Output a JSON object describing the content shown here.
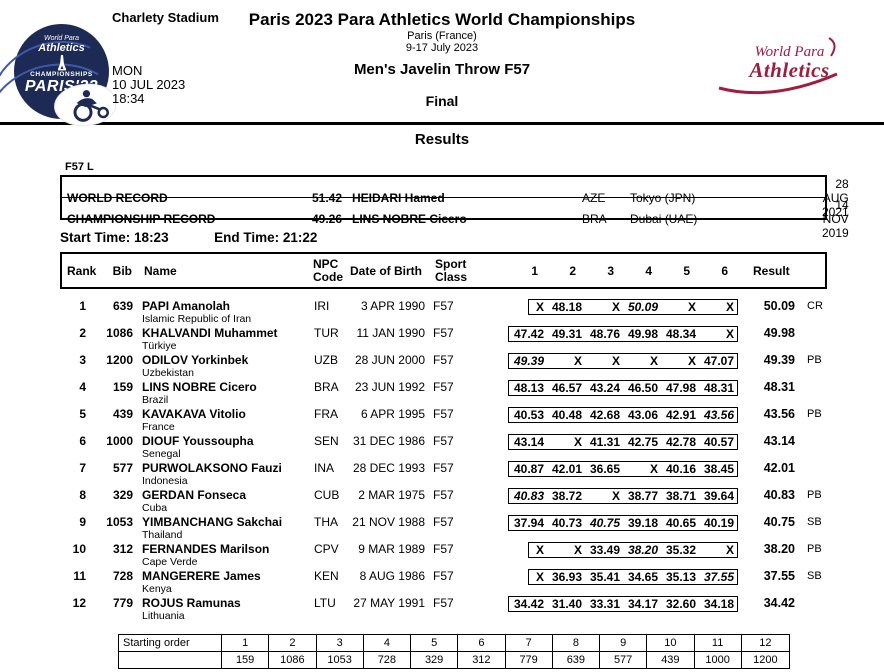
{
  "header": {
    "venue": "Charlety Stadium",
    "title": "Paris 2023 Para Athletics World Championships",
    "subtitle1": "Paris (France)",
    "subtitle2": "9-17 July 2023",
    "event": "Men's Javelin Throw F57",
    "round": "Final",
    "day": "MON",
    "date": "10 JUL 2023",
    "time": "18:34",
    "logo_left": {
      "brand1": "World Para",
      "brand2": "Athletics",
      "line3": "CHAMPIONSHIPS",
      "line4": "PARIS'23"
    },
    "logo_right": {
      "line1": "World Para",
      "line2": "Athletics"
    },
    "colors": {
      "navy": "#1e2a56",
      "crimson": "#9f1d3f"
    }
  },
  "section_title": "Results",
  "records": {
    "class_label": "F57 L",
    "rows": [
      {
        "label": "WORLD RECORD",
        "mark": "51.42",
        "athlete": "HEIDARI Hamed",
        "npc": "AZE",
        "location": "Tokyo (JPN)",
        "date": "28 AUG 2021"
      },
      {
        "label": "CHAMPIONSHIP RECORD",
        "mark": "49.26",
        "athlete": "LINS NOBRE Cicero",
        "npc": "BRA",
        "location": "Dubai (UAE)",
        "date": "14 NOV 2019"
      }
    ]
  },
  "times": {
    "start_label": "Start Time:",
    "start_value": "18:23",
    "end_label": "End Time:",
    "end_value": "21:22"
  },
  "results_table": {
    "headers": {
      "rank": "Rank",
      "bib": "Bib",
      "name": "Name",
      "npc": "NPC Code",
      "dob": "Date of Birth",
      "sport": "Sport Class",
      "result": "Result"
    },
    "attempt_headers": [
      "1",
      "2",
      "3",
      "4",
      "5",
      "6"
    ],
    "rows": [
      {
        "rank": "1",
        "bib": "639",
        "name": "PAPI Amanolah",
        "country": "Islamic Republic of Iran",
        "npc": "IRI",
        "dob": "3 APR 1990",
        "sport_class": "F57",
        "attempts": [
          "X",
          "48.18",
          "X",
          "50.09",
          "X",
          "X"
        ],
        "best_index": 3,
        "result": "50.09",
        "note": "CR"
      },
      {
        "rank": "2",
        "bib": "1086",
        "name": "KHALVANDI Muhammet",
        "country": "Türkiye",
        "npc": "TUR",
        "dob": "11 JAN 1990",
        "sport_class": "F57",
        "attempts": [
          "47.42",
          "49.31",
          "48.76",
          "49.98",
          "48.34",
          "X"
        ],
        "best_index": null,
        "result": "49.98",
        "note": ""
      },
      {
        "rank": "3",
        "bib": "1200",
        "name": "ODILOV Yorkinbek",
        "country": "Uzbekistan",
        "npc": "UZB",
        "dob": "28 JUN 2000",
        "sport_class": "F57",
        "attempts": [
          "49.39",
          "X",
          "X",
          "X",
          "X",
          "47.07"
        ],
        "best_index": 0,
        "result": "49.39",
        "note": "PB"
      },
      {
        "rank": "4",
        "bib": "159",
        "name": "LINS NOBRE Cicero",
        "country": "Brazil",
        "npc": "BRA",
        "dob": "23 JUN 1992",
        "sport_class": "F57",
        "attempts": [
          "48.13",
          "46.57",
          "43.24",
          "46.50",
          "47.98",
          "48.31"
        ],
        "best_index": null,
        "result": "48.31",
        "note": ""
      },
      {
        "rank": "5",
        "bib": "439",
        "name": "KAVAKAVA Vitolio",
        "country": "France",
        "npc": "FRA",
        "dob": "6 APR 1995",
        "sport_class": "F57",
        "attempts": [
          "40.53",
          "40.48",
          "42.68",
          "43.06",
          "42.91",
          "43.56"
        ],
        "best_index": 5,
        "result": "43.56",
        "note": "PB"
      },
      {
        "rank": "6",
        "bib": "1000",
        "name": "DIOUF Youssoupha",
        "country": "Senegal",
        "npc": "SEN",
        "dob": "31 DEC 1986",
        "sport_class": "F57",
        "attempts": [
          "43.14",
          "X",
          "41.31",
          "42.75",
          "42.78",
          "40.57"
        ],
        "best_index": null,
        "result": "43.14",
        "note": ""
      },
      {
        "rank": "7",
        "bib": "577",
        "name": "PURWOLAKSONO Fauzi",
        "country": "Indonesia",
        "npc": "INA",
        "dob": "28 DEC 1993",
        "sport_class": "F57",
        "attempts": [
          "40.87",
          "42.01",
          "36.65",
          "X",
          "40.16",
          "38.45"
        ],
        "best_index": null,
        "result": "42.01",
        "note": ""
      },
      {
        "rank": "8",
        "bib": "329",
        "name": "GERDAN Fonseca",
        "country": "Cuba",
        "npc": "CUB",
        "dob": "2 MAR 1975",
        "sport_class": "F57",
        "attempts": [
          "40.83",
          "38.72",
          "X",
          "38.77",
          "38.71",
          "39.64"
        ],
        "best_index": 0,
        "result": "40.83",
        "note": "PB"
      },
      {
        "rank": "9",
        "bib": "1053",
        "name": "YIMBANCHANG Sakchai",
        "country": "Thailand",
        "npc": "THA",
        "dob": "21 NOV 1988",
        "sport_class": "F57",
        "attempts": [
          "37.94",
          "40.73",
          "40.75",
          "39.18",
          "40.65",
          "40.19"
        ],
        "best_index": 2,
        "result": "40.75",
        "note": "SB"
      },
      {
        "rank": "10",
        "bib": "312",
        "name": "FERNANDES Marilson",
        "country": "Cape Verde",
        "npc": "CPV",
        "dob": "9 MAR 1989",
        "sport_class": "F57",
        "attempts": [
          "X",
          "X",
          "33.49",
          "38.20",
          "35.32",
          "X"
        ],
        "best_index": 3,
        "result": "38.20",
        "note": "PB"
      },
      {
        "rank": "11",
        "bib": "728",
        "name": "MANGERERE James",
        "country": "Kenya",
        "npc": "KEN",
        "dob": "8 AUG 1986",
        "sport_class": "F57",
        "attempts": [
          "X",
          "36.93",
          "35.41",
          "34.65",
          "35.13",
          "37.55"
        ],
        "best_index": 5,
        "result": "37.55",
        "note": "SB"
      },
      {
        "rank": "12",
        "bib": "779",
        "name": "ROJUS Ramunas",
        "country": "Lithuania",
        "npc": "LTU",
        "dob": "27 MAY 1991",
        "sport_class": "F57",
        "attempts": [
          "34.42",
          "31.40",
          "33.31",
          "34.17",
          "32.60",
          "34.18"
        ],
        "best_index": null,
        "result": "34.42",
        "note": ""
      }
    ]
  },
  "starting_order": {
    "label": "Starting order",
    "positions": [
      "1",
      "2",
      "3",
      "4",
      "5",
      "6",
      "7",
      "8",
      "9",
      "10",
      "11",
      "12"
    ],
    "bibs": [
      "159",
      "1086",
      "1053",
      "728",
      "329",
      "312",
      "779",
      "639",
      "577",
      "439",
      "1000",
      "1200"
    ]
  }
}
